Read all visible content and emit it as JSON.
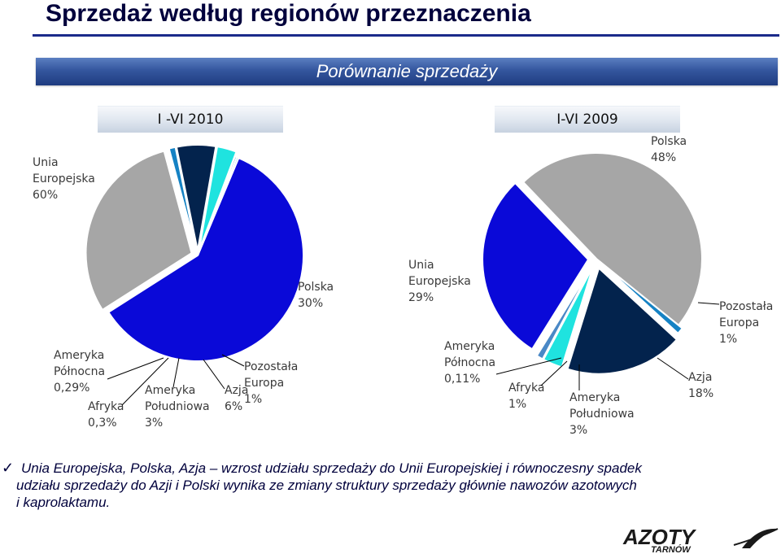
{
  "page": {
    "title": "Sprzedaż według regionów przeznaczenia",
    "banner": "Porównanie sprzedaży"
  },
  "colors": {
    "ue": "#0a09d8",
    "polska": "#a6a6a6",
    "pozostala_europa": "#1582c4",
    "azja": "#03234d",
    "ameryka_poludniowa": "#1fe3df",
    "afryka": "#4a88c6",
    "ameryka_polnocna": "#6fd0e0",
    "banner_bg": "#2a4a8f",
    "title": "#00003c"
  },
  "chart_data": [
    {
      "type": "pie",
      "title": "I -VI 2010",
      "slices": [
        {
          "name": "Unia Europejska",
          "value": 60,
          "label": [
            "Unia",
            "Europejska",
            "60%"
          ],
          "color": "#0a09d8"
        },
        {
          "name": "Polska",
          "value": 30,
          "label": [
            "Polska",
            "30%"
          ],
          "color": "#a6a6a6"
        },
        {
          "name": "Pozostała Europa",
          "value": 1,
          "label": [
            "Pozostała",
            "Europa",
            "1%"
          ],
          "color": "#1582c4"
        },
        {
          "name": "Azja",
          "value": 6,
          "label": [
            "Azja",
            "6%"
          ],
          "color": "#03234d"
        },
        {
          "name": "Ameryka Południowa",
          "value": 3,
          "label": [
            "Ameryka",
            "Południowa",
            "3%"
          ],
          "color": "#1fe3df"
        },
        {
          "name": "Afryka",
          "value": 0.3,
          "label": [
            "Afryka",
            "0,3%"
          ],
          "color": "#4a88c6"
        },
        {
          "name": "Ameryka Północna",
          "value": 0.29,
          "label": [
            "Ameryka",
            "Północna",
            "0,29%"
          ],
          "color": "#6fd0e0"
        }
      ]
    },
    {
      "type": "pie",
      "title": "I-VI 2009",
      "slices": [
        {
          "name": "Polska",
          "value": 48,
          "label": [
            "Polska",
            "48%"
          ],
          "color": "#a6a6a6"
        },
        {
          "name": "Pozostała Europa",
          "value": 1,
          "label": [
            "Pozostała",
            "Europa",
            "1%"
          ],
          "color": "#1582c4"
        },
        {
          "name": "Azja",
          "value": 18,
          "label": [
            "Azja",
            "18%"
          ],
          "color": "#03234d"
        },
        {
          "name": "Ameryka Południowa",
          "value": 3,
          "label": [
            "Ameryka",
            "Południowa",
            "3%"
          ],
          "color": "#1fe3df"
        },
        {
          "name": "Afryka",
          "value": 1,
          "label": [
            "Afryka",
            "1%"
          ],
          "color": "#4a88c6"
        },
        {
          "name": "Ameryka Północna",
          "value": 0.11,
          "label": [
            "Ameryka",
            "Północna",
            "0,11%"
          ],
          "color": "#6fd0e0"
        },
        {
          "name": "Unia Europejska",
          "value": 29,
          "label": [
            "Unia",
            "Europejska",
            "29%"
          ],
          "color": "#0a09d8"
        }
      ]
    }
  ],
  "bullet": {
    "lines": [
      "Unia Europejska, Polska, Azja – wzrost  udziału sprzedaży do Unii Europejskiej i równoczesny  spadek",
      "udziału sprzedaży do Azji i Polski  wynika ze zmiany struktury  sprzedaży  głównie  nawozów azotowych",
      "i kaprolaktamu."
    ]
  },
  "logo": {
    "name": "AZOTY",
    "sub": "TARNÓW",
    "icon": "azoty-swoosh-logo"
  }
}
